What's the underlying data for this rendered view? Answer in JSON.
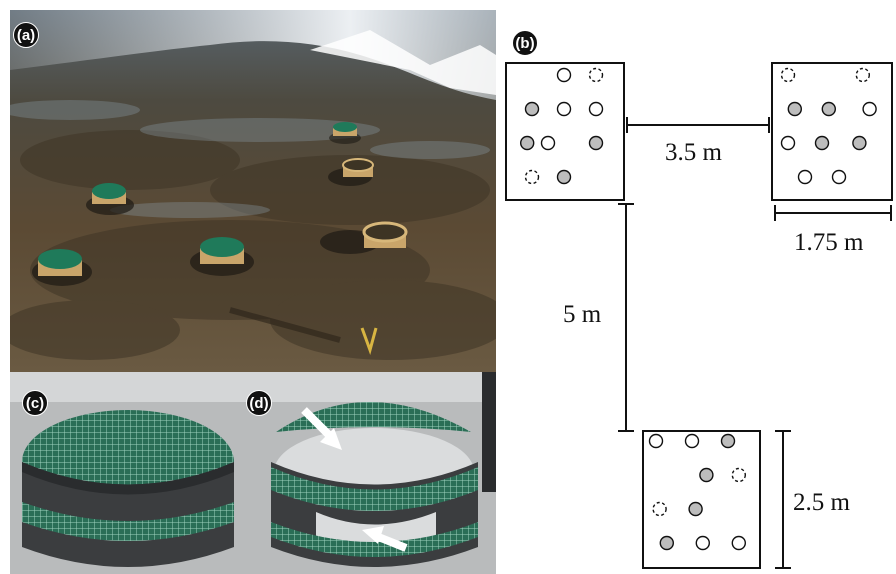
{
  "panels": {
    "a": {
      "label": "(a)"
    },
    "b": {
      "label": "(b)"
    },
    "c": {
      "label": "(c)"
    },
    "d": {
      "label": "(d)"
    }
  },
  "schematic": {
    "spacing_horizontal_label": "3.5 m",
    "spacing_vertical_label": "5 m",
    "plot_width_label": "1.75 m",
    "plot_height_label": "2.5 m",
    "plots": [
      {
        "name": "plot-top-left",
        "markers": [
          {
            "type": "open",
            "gx": 1,
            "gy": 0
          },
          {
            "type": "dashed",
            "gx": 2,
            "gy": 0
          },
          {
            "type": "filled",
            "gx": 0,
            "gy": 1
          },
          {
            "type": "open",
            "gx": 1,
            "gy": 1
          },
          {
            "type": "open",
            "gx": 2,
            "gy": 1
          },
          {
            "type": "filled",
            "gx": -0.15,
            "gy": 2
          },
          {
            "type": "open",
            "gx": 0.5,
            "gy": 2
          },
          {
            "type": "filled",
            "gx": 2,
            "gy": 2
          },
          {
            "type": "dashed",
            "gx": 0,
            "gy": 3
          },
          {
            "type": "filled",
            "gx": 1,
            "gy": 3
          }
        ]
      },
      {
        "name": "plot-top-right",
        "markers": [
          {
            "type": "dashed",
            "gx": 0,
            "gy": 0
          },
          {
            "type": "dashed",
            "gx": 2.2,
            "gy": 0
          },
          {
            "type": "filled",
            "gx": 0.2,
            "gy": 1
          },
          {
            "type": "filled",
            "gx": 1.2,
            "gy": 1
          },
          {
            "type": "open",
            "gx": 2.4,
            "gy": 1
          },
          {
            "type": "open",
            "gx": 0,
            "gy": 2
          },
          {
            "type": "filled",
            "gx": 1,
            "gy": 2
          },
          {
            "type": "filled",
            "gx": 2.1,
            "gy": 2
          },
          {
            "type": "open",
            "gx": 0.5,
            "gy": 3
          },
          {
            "type": "open",
            "gx": 1.5,
            "gy": 3
          }
        ]
      },
      {
        "name": "plot-bottom",
        "markers": [
          {
            "type": "open",
            "gx": 0,
            "gy": 0
          },
          {
            "type": "open",
            "gx": 1,
            "gy": 0
          },
          {
            "type": "filled",
            "gx": 2,
            "gy": 0
          },
          {
            "type": "filled",
            "gx": 1.4,
            "gy": 1
          },
          {
            "type": "dashed",
            "gx": 2.3,
            "gy": 1
          },
          {
            "type": "dashed",
            "gx": 0.1,
            "gy": 2
          },
          {
            "type": "filled",
            "gx": 1.1,
            "gy": 2
          },
          {
            "type": "filled",
            "gx": 0.3,
            "gy": 3
          },
          {
            "type": "open",
            "gx": 1.3,
            "gy": 3
          },
          {
            "type": "open",
            "gx": 2.3,
            "gy": 3
          }
        ]
      }
    ]
  },
  "colors": {
    "water": "#6f6a5c",
    "sky_reflection": "#e9eef2",
    "mesh_green": "#1f7a5a",
    "ring_tan": "#c9a56a",
    "marker_fill": "#bdbdbd",
    "stroke": "#111111"
  }
}
